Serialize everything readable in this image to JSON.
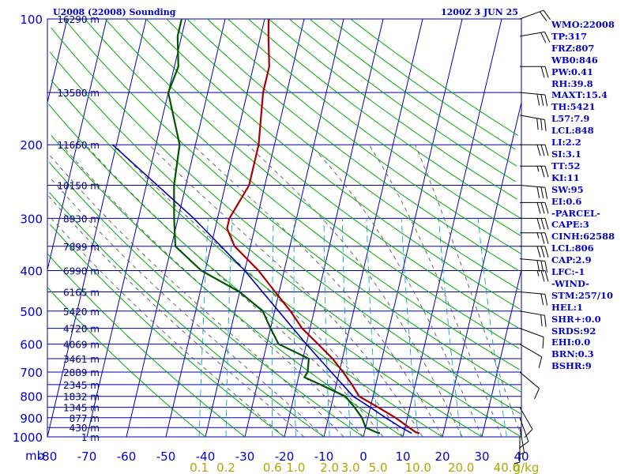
{
  "header": {
    "station_title": "U2008 (22008) Sounding",
    "time_label": "1200Z  3 JUN 25"
  },
  "indices": [
    "WMO:22008",
    "TP:317",
    "FRZ:807",
    "WB0:846",
    "PW:0.41",
    "RH:39.8",
    "MAXT:15.4",
    "TH:5421",
    "L57:7.9",
    "LCL:848",
    "LI:2.2",
    "SI:3.1",
    "TT:52",
    "KI:11",
    "SW:95",
    "EI:0.6",
    "-PARCEL-",
    "CAPE:3",
    "CINH:62588",
    "LCL:806",
    "CAP:2.9",
    "LFC:-1",
    "-WIND-",
    "STM:257/10",
    "HEL:1",
    "SHR+:0.0",
    "SRDS:92",
    "EHI:0.0",
    "BRN:0.3",
    "BSHR:9"
  ],
  "colors": {
    "frame": "#0000aa",
    "isobar": "#0000aa",
    "isotherm": "#0000aa",
    "dry_adiabat": "#00aa00",
    "moist_adiabat": "#555555",
    "mixing_ratio": "#00aacc",
    "temperature": "#aa0000",
    "dewpoint": "#005500",
    "parcel": "#0000aa",
    "text_blue": "#0000cc",
    "mixing_label": "#aaaa00",
    "wind_barb": "#000000"
  },
  "chart_data": {
    "type": "line",
    "chart_kind": "skew-T log-p sounding",
    "y_axis": {
      "label": "mb",
      "scale": "log",
      "range": [
        1000,
        100
      ],
      "ticks": [
        "100",
        "200",
        "300",
        "400",
        "500",
        "600",
        "700",
        "800",
        "900",
        "1000"
      ]
    },
    "x_axis": {
      "unit": "°C",
      "ticks": [
        "-80",
        "-70",
        "-60",
        "-50",
        "-40",
        "-30",
        "-20",
        "-10",
        "0",
        "10",
        "20",
        "30",
        "40"
      ],
      "range": [
        -80,
        40
      ]
    },
    "mixing_ratio_axis": {
      "label": "g/kg",
      "ticks": [
        "0.1",
        "0.2",
        "0.6",
        "1.0",
        "2.0",
        "3.0",
        "5.0",
        "10.0",
        "20.0",
        "40.0"
      ]
    },
    "height_labels": [
      {
        "p": 100,
        "text": "16290 m"
      },
      {
        "p": 150,
        "text": "13580 m"
      },
      {
        "p": 200,
        "text": "11660 m"
      },
      {
        "p": 250,
        "text": "10150 m"
      },
      {
        "p": 300,
        "text": "8930 m"
      },
      {
        "p": 350,
        "text": "7899 m"
      },
      {
        "p": 400,
        "text": "6990 m"
      },
      {
        "p": 450,
        "text": "6165 m"
      },
      {
        "p": 500,
        "text": "5420 m"
      },
      {
        "p": 550,
        "text": "4720 m"
      },
      {
        "p": 600,
        "text": "4069 m"
      },
      {
        "p": 650,
        "text": "3461 m"
      },
      {
        "p": 700,
        "text": "2889 m"
      },
      {
        "p": 750,
        "text": "2345 m"
      },
      {
        "p": 800,
        "text": "1832 m"
      },
      {
        "p": 850,
        "text": "1345 m"
      },
      {
        "p": 900,
        "text": "877 m"
      },
      {
        "p": 950,
        "text": "430 m"
      },
      {
        "p": 1000,
        "text": "1 m"
      }
    ],
    "series": [
      {
        "id": "temperature",
        "points": [
          [
            980,
            14
          ],
          [
            975,
            13
          ],
          [
            950,
            11
          ],
          [
            900,
            7
          ],
          [
            850,
            2
          ],
          [
            800,
            -3.5
          ],
          [
            750,
            -6
          ],
          [
            700,
            -9
          ],
          [
            650,
            -12.5
          ],
          [
            600,
            -17
          ],
          [
            550,
            -22
          ],
          [
            500,
            -26
          ],
          [
            450,
            -31
          ],
          [
            400,
            -36.5
          ],
          [
            350,
            -44
          ],
          [
            317,
            -47
          ],
          [
            300,
            -47
          ],
          [
            250,
            -44
          ],
          [
            200,
            -44
          ],
          [
            150,
            -46
          ],
          [
            130,
            -46
          ],
          [
            110,
            -48
          ],
          [
            100,
            -49
          ]
        ]
      },
      {
        "id": "dewpoint",
        "points": [
          [
            980,
            4
          ],
          [
            975,
            3
          ],
          [
            950,
            0
          ],
          [
            900,
            -1.5
          ],
          [
            850,
            -4
          ],
          [
            800,
            -7
          ],
          [
            750,
            -14
          ],
          [
            720,
            -18.5
          ],
          [
            700,
            -18
          ],
          [
            650,
            -18.5
          ],
          [
            600,
            -27
          ],
          [
            550,
            -30
          ],
          [
            500,
            -33
          ],
          [
            450,
            -40
          ],
          [
            400,
            -51
          ],
          [
            350,
            -59
          ],
          [
            300,
            -61
          ],
          [
            250,
            -63
          ],
          [
            200,
            -64
          ],
          [
            150,
            -70
          ],
          [
            130,
            -69
          ],
          [
            110,
            -71
          ],
          [
            100,
            -71
          ]
        ]
      },
      {
        "id": "parcel",
        "points": [
          [
            980,
            12
          ],
          [
            950,
            9
          ],
          [
            900,
            4.5
          ],
          [
            850,
            0
          ],
          [
            800,
            -5
          ],
          [
            700,
            -12
          ],
          [
            600,
            -20
          ],
          [
            500,
            -29
          ],
          [
            400,
            -40
          ],
          [
            300,
            -56
          ],
          [
            200,
            -81
          ]
        ]
      }
    ],
    "wind_barbs": [
      {
        "p": 100,
        "dir": 250,
        "spd": 20
      },
      {
        "p": 110,
        "dir": 260,
        "spd": 20
      },
      {
        "p": 130,
        "dir": 270,
        "spd": 20
      },
      {
        "p": 150,
        "dir": 275,
        "spd": 30
      },
      {
        "p": 170,
        "dir": 280,
        "spd": 30
      },
      {
        "p": 200,
        "dir": 270,
        "spd": 30
      },
      {
        "p": 225,
        "dir": 270,
        "spd": 25
      },
      {
        "p": 250,
        "dir": 275,
        "spd": 30
      },
      {
        "p": 275,
        "dir": 270,
        "spd": 30
      },
      {
        "p": 300,
        "dir": 270,
        "spd": 30
      },
      {
        "p": 325,
        "dir": 270,
        "spd": 25
      },
      {
        "p": 350,
        "dir": 270,
        "spd": 30
      },
      {
        "p": 375,
        "dir": 275,
        "spd": 30
      },
      {
        "p": 400,
        "dir": 270,
        "spd": 25
      },
      {
        "p": 450,
        "dir": 275,
        "spd": 20
      },
      {
        "p": 500,
        "dir": 280,
        "spd": 20
      },
      {
        "p": 550,
        "dir": 290,
        "spd": 10
      },
      {
        "p": 600,
        "dir": 300,
        "spd": 10
      },
      {
        "p": 700,
        "dir": 310,
        "spd": 10
      },
      {
        "p": 850,
        "dir": 330,
        "spd": 10
      },
      {
        "p": 900,
        "dir": 340,
        "spd": 10
      },
      {
        "p": 950,
        "dir": 350,
        "spd": 5
      },
      {
        "p": 1000,
        "dir": 0,
        "spd": 5
      }
    ]
  }
}
